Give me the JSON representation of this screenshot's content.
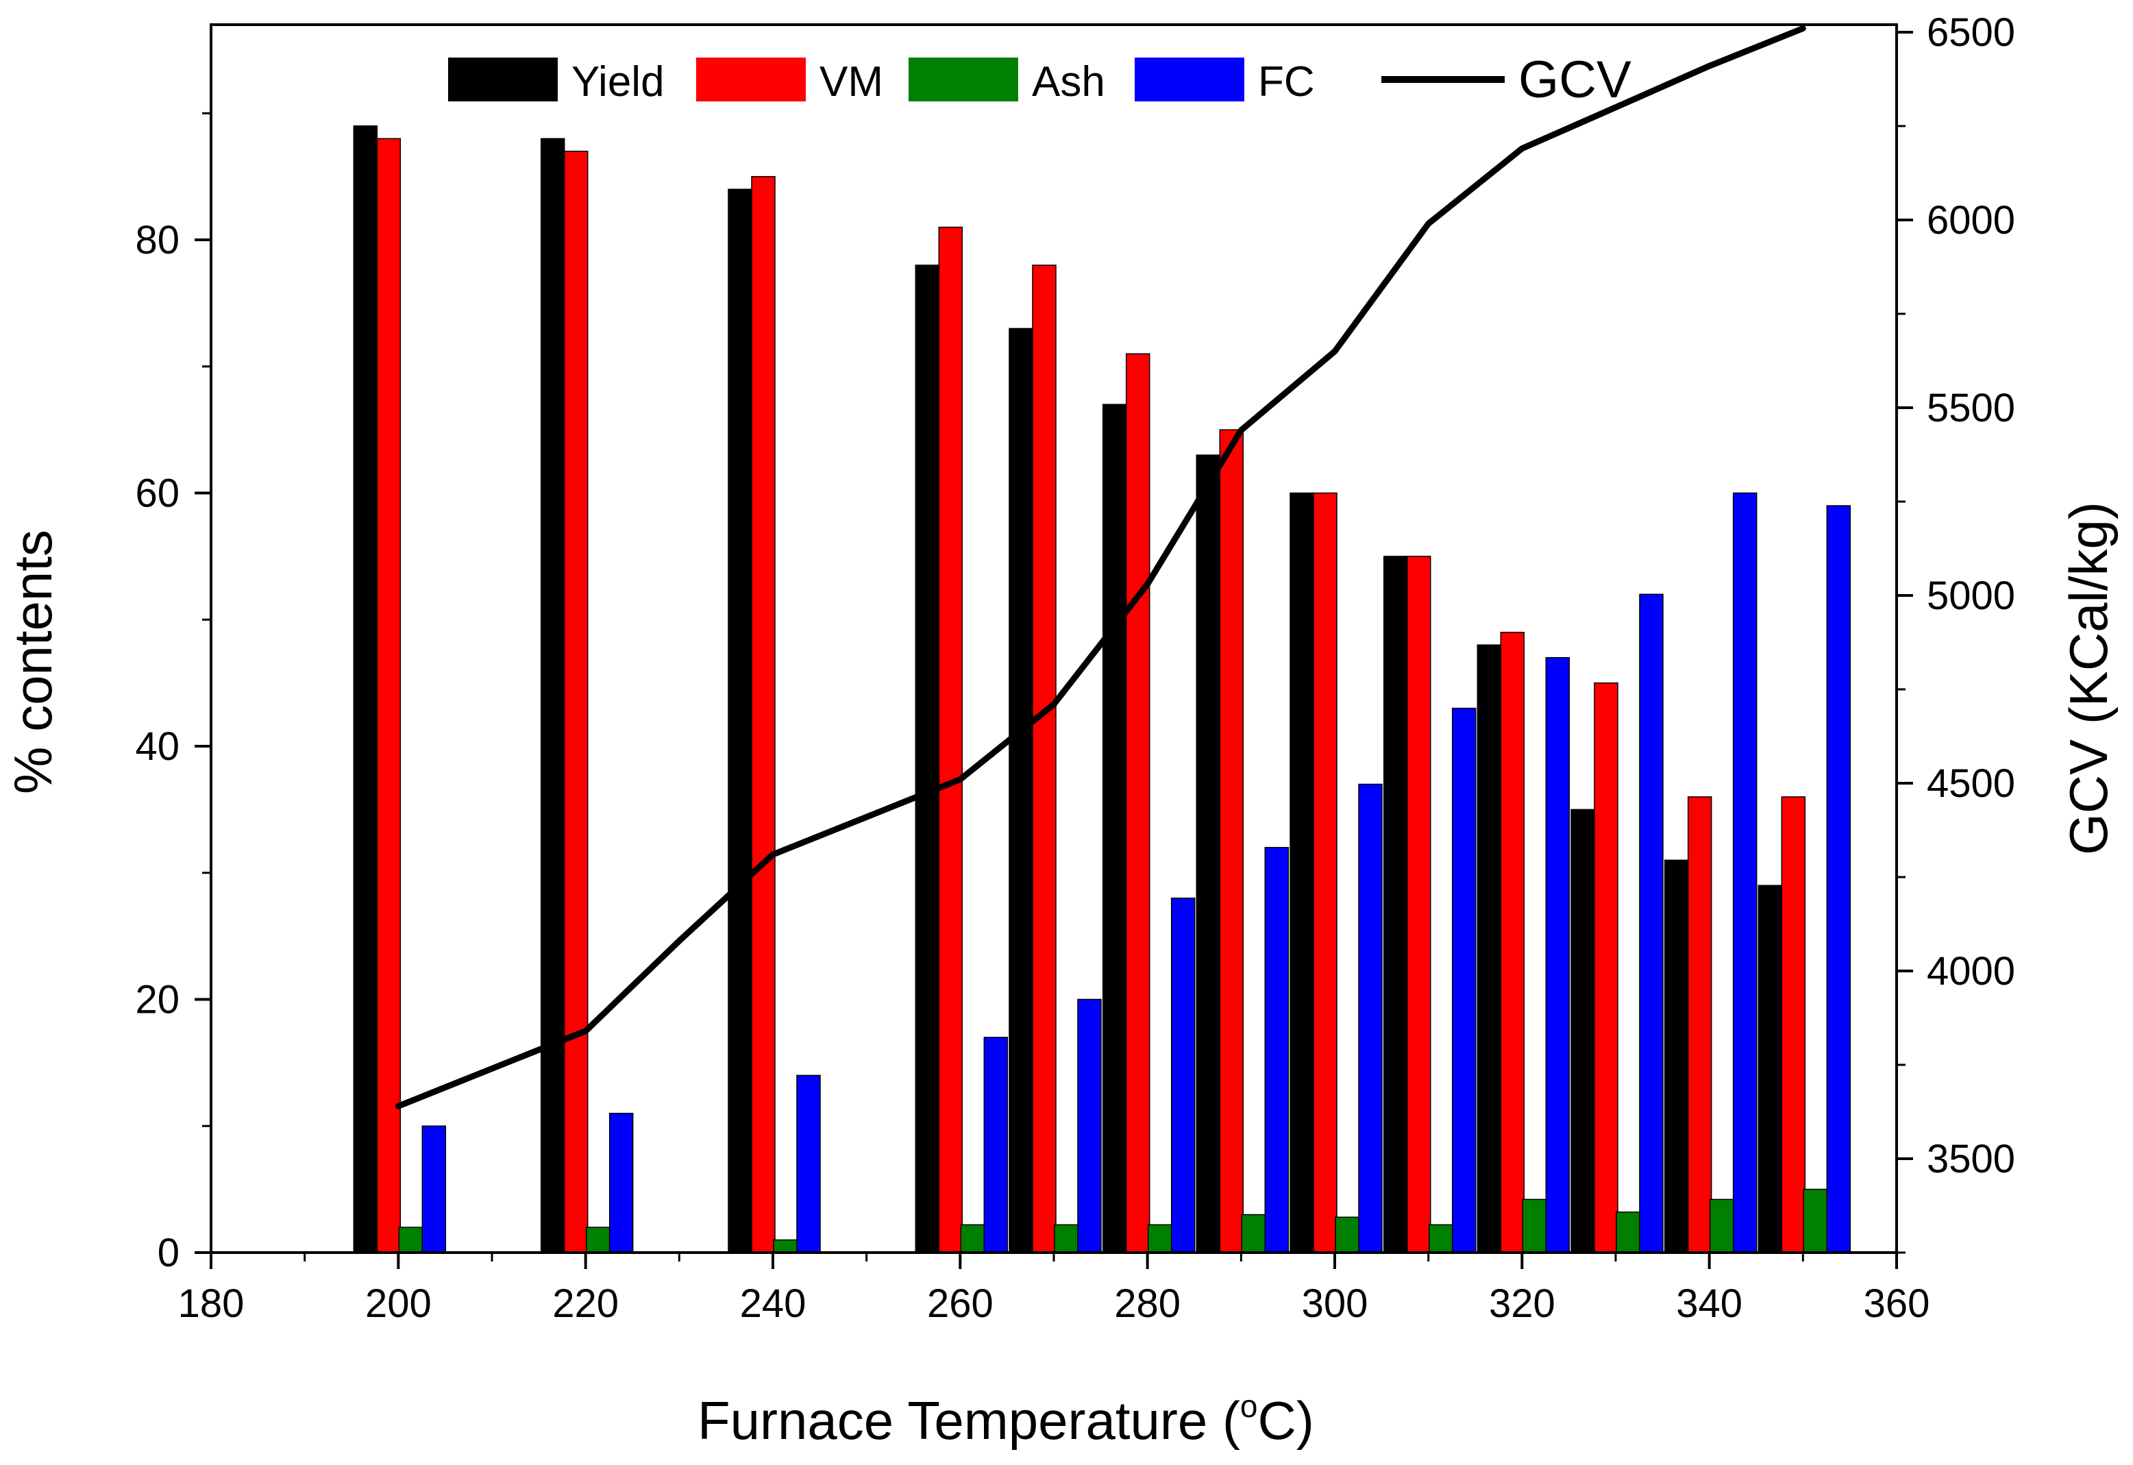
{
  "chart_data": {
    "type": "bar",
    "xlabel": "Furnace Temperature (°C)",
    "xlabel_main": "Furnace Temperature (",
    "xlabel_deg": "o",
    "xlabel_unit": "C)",
    "ylabel": "% contents",
    "y2label": "GCV (KCal/kg)",
    "xlim": [
      180,
      360
    ],
    "ylim": [
      0,
      97
    ],
    "y2lim": [
      3250,
      6520
    ],
    "xticks": [
      180,
      200,
      220,
      240,
      260,
      280,
      300,
      320,
      340,
      360
    ],
    "yticks": [
      0,
      20,
      40,
      60,
      80
    ],
    "y2ticks": [
      3500,
      4000,
      4500,
      5000,
      5500,
      6000,
      6500
    ],
    "legend_position": "top",
    "grid": false,
    "bar_series": [
      {
        "name": "Yield",
        "color": "#000000",
        "x": [
          200,
          220,
          240,
          260,
          270,
          280,
          290,
          300,
          310,
          320,
          330,
          340,
          350
        ],
        "values": [
          89,
          88,
          84,
          78,
          73,
          67,
          63,
          60,
          55,
          48,
          35,
          31,
          29
        ]
      },
      {
        "name": "VM",
        "color": "#ff0000",
        "x": [
          200,
          220,
          240,
          260,
          270,
          280,
          290,
          300,
          310,
          320,
          330,
          340,
          350
        ],
        "values": [
          88,
          87,
          85,
          81,
          78,
          71,
          65,
          60,
          55,
          49,
          45,
          36,
          36
        ]
      },
      {
        "name": "Ash",
        "color": "#008000",
        "x": [
          200,
          220,
          240,
          260,
          270,
          280,
          290,
          300,
          310,
          320,
          330,
          340,
          350
        ],
        "values": [
          2,
          2,
          1,
          2.2,
          2.2,
          2.2,
          3,
          2.8,
          2.2,
          4.2,
          3.2,
          4.2,
          5
        ]
      },
      {
        "name": "FC",
        "color": "#0000ff",
        "x": [
          200,
          220,
          240,
          260,
          270,
          280,
          290,
          300,
          310,
          320,
          330,
          340,
          350
        ],
        "values": [
          10,
          11,
          14,
          17,
          20,
          28,
          32,
          37,
          43,
          47,
          52,
          60,
          59
        ]
      }
    ],
    "line_series": {
      "name": "GCV",
      "color": "#000000",
      "axis": "right",
      "x": [
        200,
        210,
        220,
        230,
        240,
        250,
        260,
        270,
        280,
        290,
        300,
        310,
        320,
        330,
        340,
        350
      ],
      "values": [
        3640,
        3740,
        3840,
        4080,
        4310,
        4410,
        4510,
        4710,
        5030,
        5440,
        5650,
        5990,
        6190,
        6300,
        6410,
        6510
      ]
    }
  }
}
